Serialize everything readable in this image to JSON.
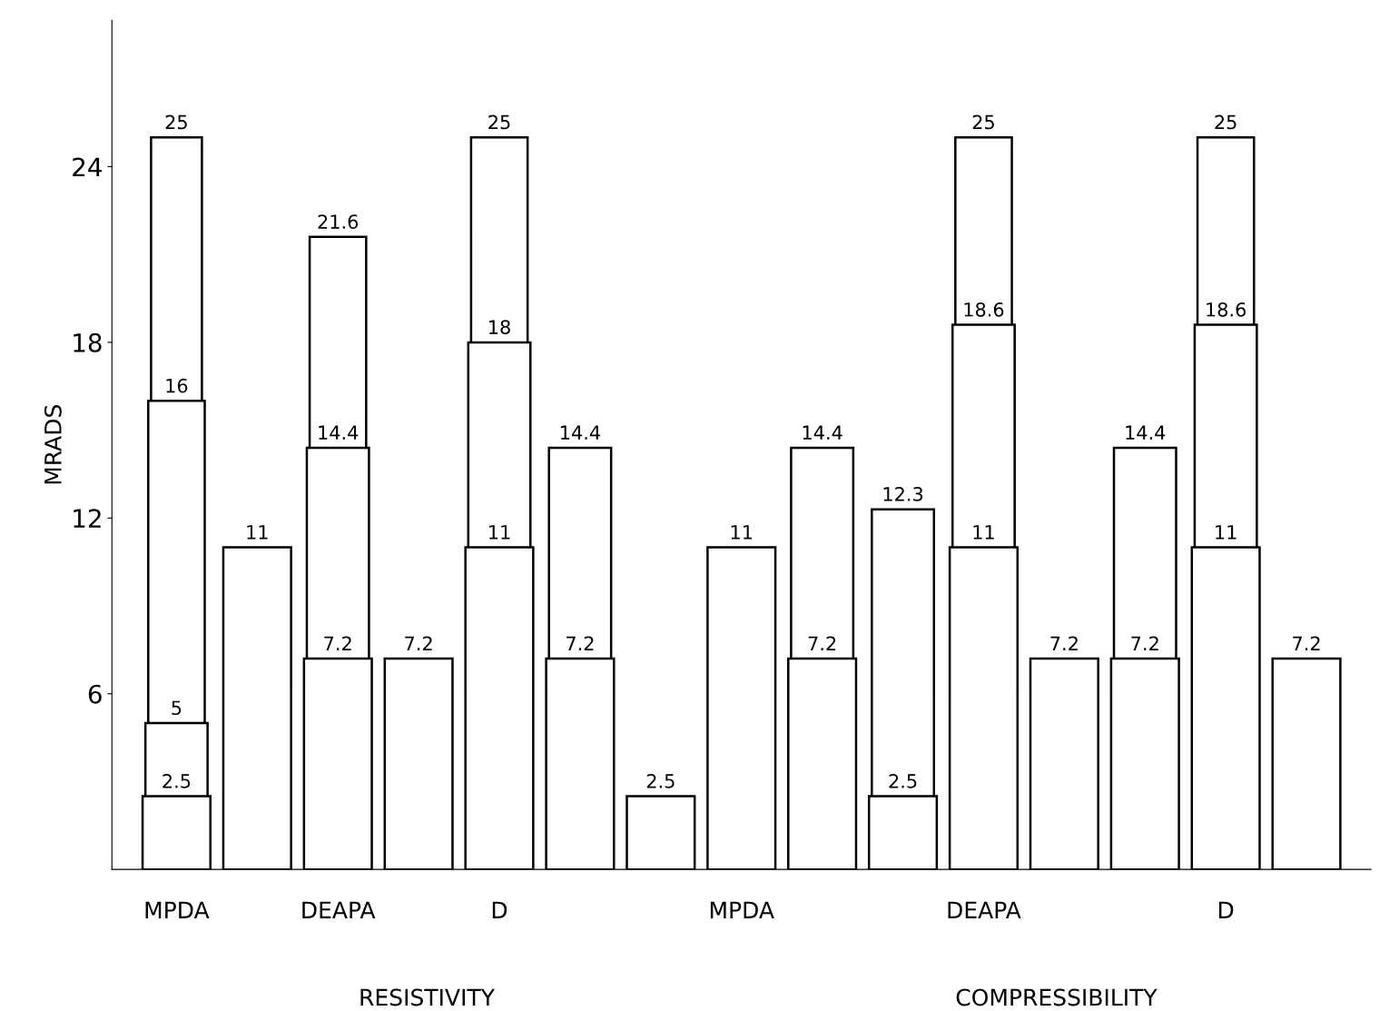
{
  "chart_data": {
    "type": "bar",
    "stacked": false,
    "ylabel": "MRADS",
    "categories": [
      "MPDA",
      null,
      "DEAPA",
      null,
      "D",
      null,
      null,
      "MPDA",
      null,
      null,
      "DEAPA",
      null,
      null,
      "D",
      null
    ],
    "series": [
      {
        "color": "#ffffff",
        "values": [
          2.5,
          11,
          7.2,
          7.2,
          11,
          7.2,
          2.5,
          11,
          7.2,
          2.5,
          11,
          7.2,
          7.2,
          11,
          7.2
        ]
      },
      {
        "color": "#ffffff",
        "values": [
          5,
          null,
          14.4,
          null,
          18,
          14.4,
          null,
          null,
          14.4,
          12.3,
          18.6,
          null,
          14.4,
          18.6,
          null
        ]
      },
      {
        "color": "#ffffff",
        "values": [
          16,
          null,
          21.6,
          null,
          25,
          null,
          null,
          null,
          null,
          null,
          25,
          null,
          null,
          25,
          null
        ]
      },
      {
        "color": "#ffffff",
        "values": [
          25,
          null,
          null,
          null,
          null,
          null,
          null,
          null,
          null,
          null,
          null,
          null,
          null,
          null,
          null
        ]
      }
    ],
    "data_labels": true,
    "ylim": [
      0,
      29
    ],
    "yticks": [
      6,
      12,
      18,
      24
    ],
    "grid": false,
    "legend": false,
    "annotations": [
      "RESISTIVITY",
      "COMPRESSIBILITY"
    ]
  }
}
